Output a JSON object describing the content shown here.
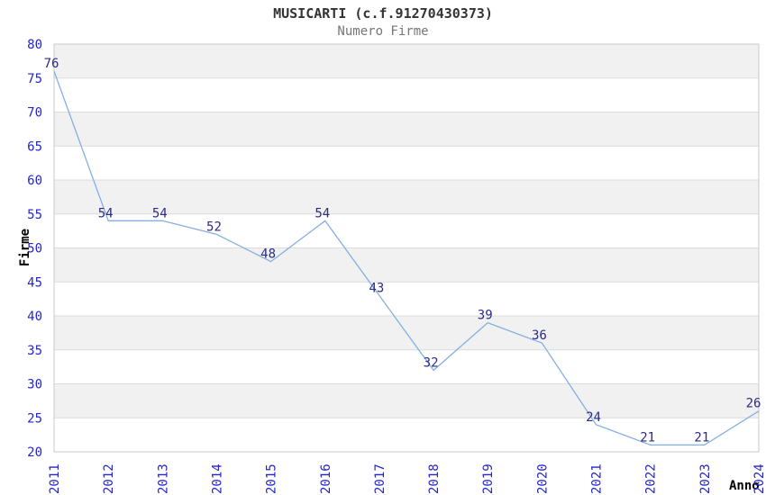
{
  "chart_data": {
    "type": "line",
    "title": "MUSICARTI (c.f.91270430373)",
    "subtitle": "Numero Firme",
    "xlabel": "Anno",
    "ylabel": "Firme",
    "categories": [
      "2011",
      "2012",
      "2013",
      "2014",
      "2015",
      "2016",
      "2017",
      "2018",
      "2019",
      "2020",
      "2021",
      "2022",
      "2023",
      "2024"
    ],
    "series": [
      {
        "name": "Numero Firme",
        "values": [
          76,
          54,
          54,
          52,
          48,
          54,
          43,
          32,
          39,
          36,
          24,
          21,
          21,
          26
        ]
      }
    ],
    "ylim": [
      20,
      80
    ],
    "ytick_step": 5,
    "ytick_labels": [
      "20",
      "25",
      "30",
      "35",
      "40",
      "45",
      "50",
      "55",
      "60",
      "65",
      "70",
      "75",
      "80"
    ],
    "grid": "alternating-horizontal-bands",
    "legend": "none",
    "point_labels": true,
    "markers": "none"
  },
  "style": {
    "line_color": "#85afe2",
    "tick_label_color": "#2525cd",
    "point_label_color": "#2b2b85",
    "band_color": "#f1f1f1",
    "grid_color": "#dcdcdc",
    "border_color": "#c9c9c9",
    "subtitle_color": "#757575",
    "title_color": "#333333",
    "background_color": "#ffffff"
  }
}
